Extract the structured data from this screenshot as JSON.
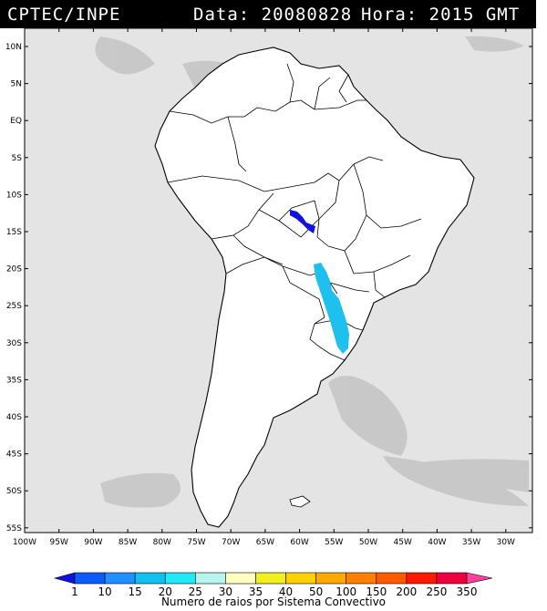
{
  "header": {
    "source": "CPTEC/INPE",
    "date_label": "Data: 20080828",
    "time_label": "Hora: 2015 GMT"
  },
  "lat_labels": [
    "10N",
    "5N",
    "EQ",
    "5S",
    "10S",
    "15S",
    "20S",
    "25S",
    "30S",
    "35S",
    "40S",
    "45S",
    "50S",
    "55S"
  ],
  "lon_labels": [
    "100W",
    "95W",
    "90W",
    "85W",
    "80W",
    "75W",
    "70W",
    "65W",
    "60W",
    "55W",
    "50W",
    "45W",
    "40W",
    "35W",
    "30W"
  ],
  "legend": {
    "values": [
      "1",
      "10",
      "15",
      "20",
      "25",
      "30",
      "35",
      "40",
      "50",
      "100",
      "150",
      "200",
      "250",
      "350"
    ],
    "colors": [
      "#1010e0",
      "#0a5cff",
      "#1e90ff",
      "#10c0ee",
      "#22e8f8",
      "#b8f4ee",
      "#ffffc0",
      "#f0f020",
      "#ffd000",
      "#ffa800",
      "#ff8000",
      "#ff5a00",
      "#ff1a00",
      "#ee0040",
      "#ff40a0"
    ],
    "caption": "Numero de raios por Sistema Convectivo"
  }
}
